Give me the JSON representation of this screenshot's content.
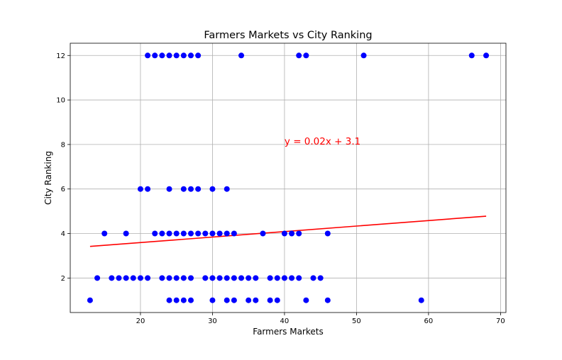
{
  "chart_data": {
    "type": "scatter",
    "title": "Farmers Markets vs City Ranking",
    "xlabel": "Farmers Markets",
    "ylabel": "City Ranking",
    "xlim": [
      10.25,
      70.75
    ],
    "ylim": [
      0.45,
      12.55
    ],
    "xticks": [
      20,
      30,
      40,
      50,
      60,
      70
    ],
    "yticks": [
      2,
      4,
      6,
      8,
      10,
      12
    ],
    "grid": true,
    "point_color": "#0000ff",
    "line_color": "#ff0000",
    "points": [
      [
        21,
        12
      ],
      [
        22,
        12
      ],
      [
        23,
        12
      ],
      [
        24,
        12
      ],
      [
        25,
        12
      ],
      [
        26,
        12
      ],
      [
        27,
        12
      ],
      [
        28,
        12
      ],
      [
        34,
        12
      ],
      [
        42,
        12
      ],
      [
        43,
        12
      ],
      [
        51,
        12
      ],
      [
        66,
        12
      ],
      [
        68,
        12
      ],
      [
        20,
        6
      ],
      [
        21,
        6
      ],
      [
        24,
        6
      ],
      [
        26,
        6
      ],
      [
        27,
        6
      ],
      [
        28,
        6
      ],
      [
        30,
        6
      ],
      [
        32,
        6
      ],
      [
        15,
        4
      ],
      [
        18,
        4
      ],
      [
        22,
        4
      ],
      [
        23,
        4
      ],
      [
        24,
        4
      ],
      [
        25,
        4
      ],
      [
        26,
        4
      ],
      [
        27,
        4
      ],
      [
        28,
        4
      ],
      [
        29,
        4
      ],
      [
        30,
        4
      ],
      [
        31,
        4
      ],
      [
        32,
        4
      ],
      [
        33,
        4
      ],
      [
        37,
        4
      ],
      [
        40,
        4
      ],
      [
        41,
        4
      ],
      [
        42,
        4
      ],
      [
        46,
        4
      ],
      [
        14,
        2
      ],
      [
        16,
        2
      ],
      [
        17,
        2
      ],
      [
        18,
        2
      ],
      [
        19,
        2
      ],
      [
        20,
        2
      ],
      [
        21,
        2
      ],
      [
        23,
        2
      ],
      [
        24,
        2
      ],
      [
        25,
        2
      ],
      [
        26,
        2
      ],
      [
        27,
        2
      ],
      [
        29,
        2
      ],
      [
        30,
        2
      ],
      [
        31,
        2
      ],
      [
        32,
        2
      ],
      [
        33,
        2
      ],
      [
        34,
        2
      ],
      [
        35,
        2
      ],
      [
        36,
        2
      ],
      [
        38,
        2
      ],
      [
        39,
        2
      ],
      [
        40,
        2
      ],
      [
        41,
        2
      ],
      [
        42,
        2
      ],
      [
        44,
        2
      ],
      [
        45,
        2
      ],
      [
        13,
        1
      ],
      [
        24,
        1
      ],
      [
        25,
        1
      ],
      [
        26,
        1
      ],
      [
        27,
        1
      ],
      [
        30,
        1
      ],
      [
        32,
        1
      ],
      [
        33,
        1
      ],
      [
        35,
        1
      ],
      [
        36,
        1
      ],
      [
        38,
        1
      ],
      [
        39,
        1
      ],
      [
        43,
        1
      ],
      [
        46,
        1
      ],
      [
        59,
        1
      ]
    ],
    "regression": {
      "equation": "y = 0.02x + 3.1",
      "x_range": [
        13,
        68
      ],
      "y_values": [
        3.42,
        4.78
      ],
      "label_position": [
        40,
        8
      ]
    }
  }
}
